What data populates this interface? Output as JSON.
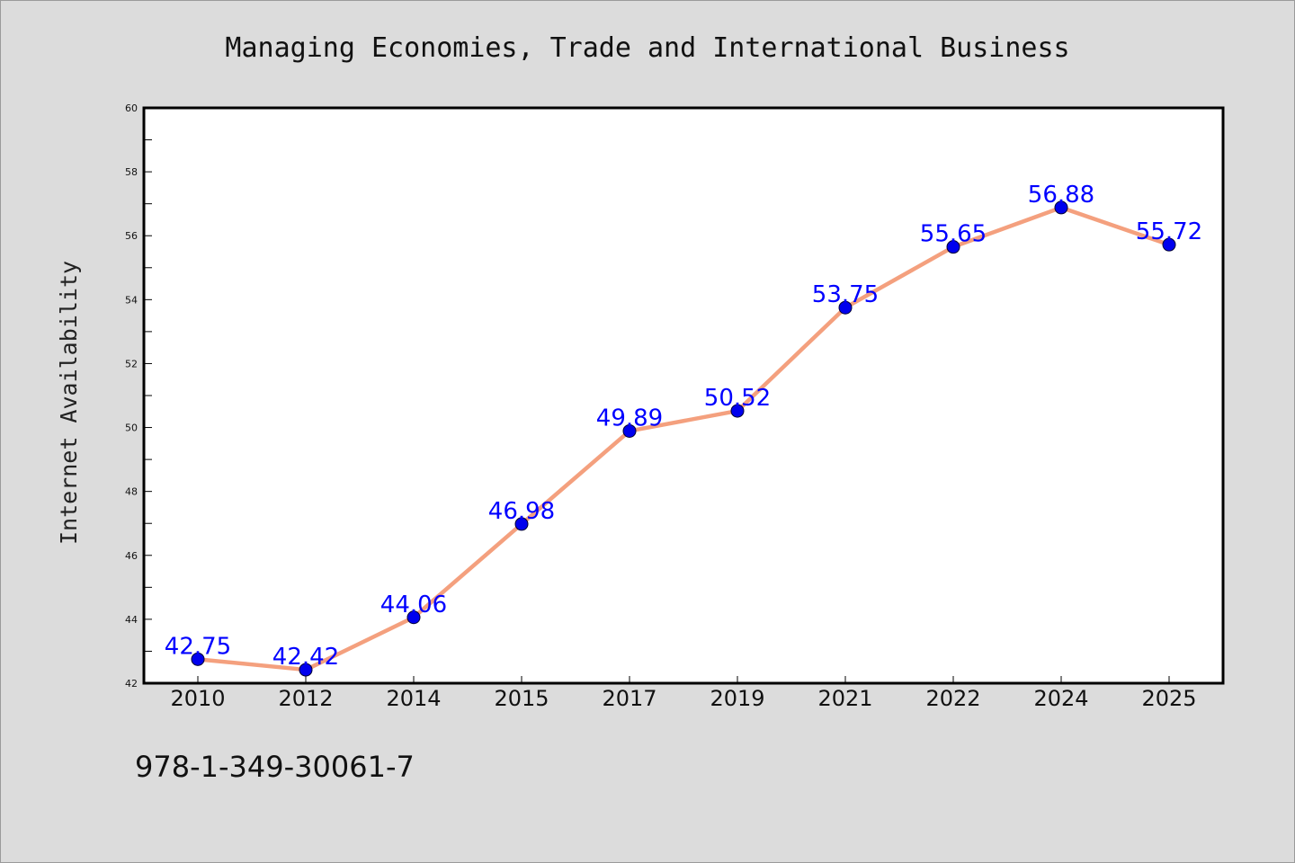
{
  "chart_data": {
    "type": "line",
    "title": "Managing Economies, Trade and International Business",
    "xlabel": "",
    "ylabel": "Internet Availability",
    "categories": [
      "2010",
      "2012",
      "2014",
      "2015",
      "2017",
      "2019",
      "2021",
      "2022",
      "2024",
      "2025"
    ],
    "series": [
      {
        "values": [
          42.75,
          42.42,
          44.06,
          46.98,
          49.89,
          50.52,
          53.75,
          55.65,
          56.88,
          55.72
        ],
        "labels": [
          "42.75",
          "42.42",
          "44.06",
          "46.98",
          "49.89",
          "50.52",
          "53.75",
          "55.65",
          "56.88",
          "55.72"
        ],
        "line_color": "#f4a07e",
        "marker_color": "#0000ee",
        "label_color": "#0000ff"
      }
    ],
    "ylim": [
      42,
      60
    ],
    "y_ticks": [
      "42",
      "44",
      "46",
      "48",
      "50",
      "52",
      "54",
      "56",
      "58",
      "60"
    ],
    "grid": false,
    "legend": "none"
  },
  "footnote": "978-1-349-30061-7",
  "colors": {
    "background": "#dcdcdc",
    "plot_background": "#ffffff",
    "axis": "#000000"
  }
}
